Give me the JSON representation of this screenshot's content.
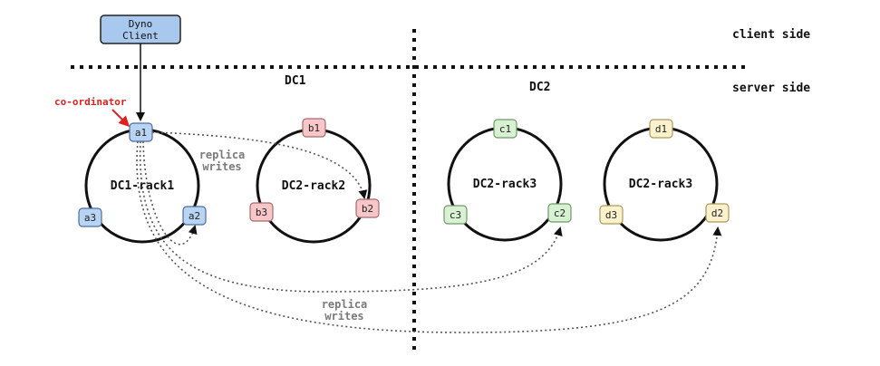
{
  "client": {
    "line1": "Dyno",
    "line2": "Client"
  },
  "sides": {
    "client": "client side",
    "server": "server side"
  },
  "datacenters": {
    "dc1": "DC1",
    "dc2": "DC2"
  },
  "coordinator": "co-ordinator",
  "replica_writes": {
    "top_line1": "replica",
    "top_line2": "writes",
    "bottom_line1": "replica",
    "bottom_line2": "writes"
  },
  "racks": [
    {
      "label": "DC1-rack1",
      "nodes": [
        "a1",
        "a2",
        "a3"
      ],
      "color": "#b9d3f2",
      "border": "#4a6e9e"
    },
    {
      "label": "DC2-rack2",
      "nodes": [
        "b1",
        "b2",
        "b3"
      ],
      "color": "#f6c6c8",
      "border": "#a86a6e"
    },
    {
      "label": "DC2-rack3",
      "nodes": [
        "c1",
        "c2",
        "c3"
      ],
      "color": "#d9f1d3",
      "border": "#6f9a67"
    },
    {
      "label": "DC2-rack3",
      "nodes": [
        "d1",
        "d2",
        "d3"
      ],
      "color": "#fbf2cd",
      "border": "#a99a5c"
    }
  ],
  "colors": {
    "client_fill": "#a9c8ee",
    "coordinator_arrow": "#e02020",
    "replica_line": "#555555"
  }
}
